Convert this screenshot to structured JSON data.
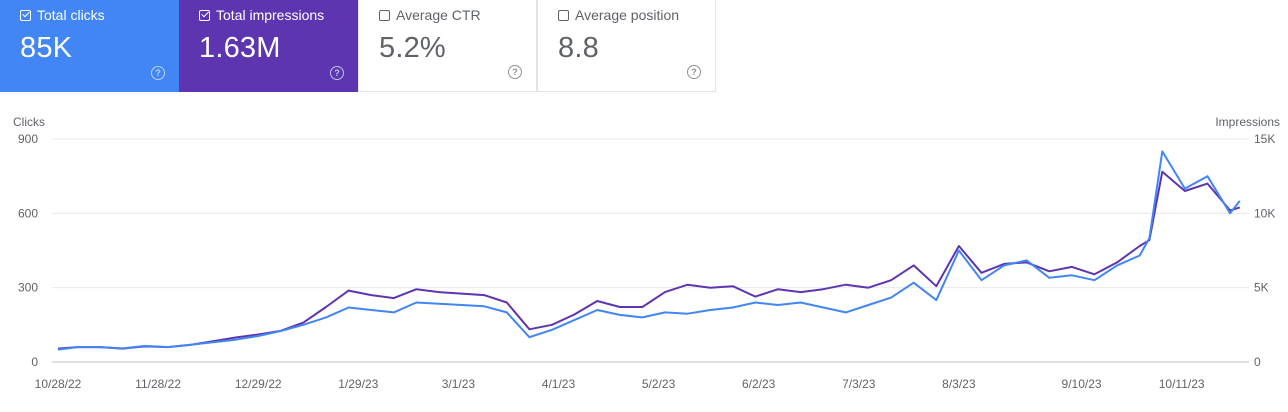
{
  "metrics": {
    "clicks": {
      "label": "Total clicks",
      "value": "85K",
      "checked": true
    },
    "impressions": {
      "label": "Total impressions",
      "value": "1.63M",
      "checked": true
    },
    "ctr": {
      "label": "Average CTR",
      "value": "5.2%",
      "checked": false
    },
    "position": {
      "label": "Average position",
      "value": "8.8",
      "checked": false
    },
    "help_glyph": "?"
  },
  "colors": {
    "clicks": "#4285f4",
    "impressions": "#5e35b1",
    "grid": "#e8eaed"
  },
  "chart_data": {
    "type": "line",
    "left_axis_title": "Clicks",
    "right_axis_title": "Impressions",
    "left_ticks": [
      "0",
      "300",
      "600",
      "900"
    ],
    "right_ticks": [
      "0",
      "5K",
      "10K",
      "15K"
    ],
    "ylim_left": [
      0,
      900
    ],
    "ylim_right": [
      0,
      15000
    ],
    "xlim": [
      "2022-10-28",
      "2023-10-30"
    ],
    "grid": true,
    "x_ticks": [
      "10/28/22",
      "11/28/22",
      "12/29/22",
      "1/29/23",
      "3/1/23",
      "4/1/23",
      "5/2/23",
      "6/2/23",
      "7/3/23",
      "8/3/23",
      "9/10/23",
      "10/11/23"
    ],
    "series": [
      {
        "name": "Clicks",
        "axis": "left",
        "x": [
          "10/28/22",
          "11/3/22",
          "11/10/22",
          "11/17/22",
          "11/24/22",
          "12/1/22",
          "12/8/22",
          "12/15/22",
          "12/22/22",
          "12/29/22",
          "1/5/23",
          "1/12/23",
          "1/19/23",
          "1/26/23",
          "2/2/23",
          "2/9/23",
          "2/16/23",
          "2/23/23",
          "3/2/23",
          "3/9/23",
          "3/16/23",
          "3/23/23",
          "3/30/23",
          "4/6/23",
          "4/13/23",
          "4/20/23",
          "4/27/23",
          "5/4/23",
          "5/11/23",
          "5/18/23",
          "5/25/23",
          "6/1/23",
          "6/8/23",
          "6/15/23",
          "6/22/23",
          "6/29/23",
          "7/6/23",
          "7/13/23",
          "7/20/23",
          "7/27/23",
          "8/3/23",
          "8/10/23",
          "8/17/23",
          "8/24/23",
          "8/31/23",
          "9/7/23",
          "9/14/23",
          "9/21/23",
          "9/28/23",
          "10/1/23",
          "10/5/23",
          "10/12/23",
          "10/19/23",
          "10/26/23",
          "10/29/23"
        ],
        "y": [
          50,
          60,
          60,
          55,
          65,
          60,
          70,
          80,
          90,
          105,
          125,
          150,
          180,
          220,
          210,
          200,
          240,
          235,
          230,
          225,
          200,
          100,
          130,
          170,
          210,
          190,
          180,
          200,
          195,
          210,
          220,
          240,
          230,
          240,
          220,
          200,
          230,
          260,
          320,
          250,
          450,
          330,
          390,
          410,
          340,
          350,
          330,
          390,
          430,
          500,
          850,
          700,
          750,
          600,
          650
        ]
      },
      {
        "name": "Impressions",
        "axis": "right",
        "x": [
          "10/28/22",
          "11/3/22",
          "11/10/22",
          "11/17/22",
          "11/24/22",
          "12/1/22",
          "12/8/22",
          "12/15/22",
          "12/22/22",
          "12/29/22",
          "1/5/23",
          "1/12/23",
          "1/19/23",
          "1/26/23",
          "2/2/23",
          "2/9/23",
          "2/16/23",
          "2/23/23",
          "3/2/23",
          "3/9/23",
          "3/16/23",
          "3/23/23",
          "3/30/23",
          "4/6/23",
          "4/13/23",
          "4/20/23",
          "4/27/23",
          "5/4/23",
          "5/11/23",
          "5/18/23",
          "5/25/23",
          "6/1/23",
          "6/8/23",
          "6/15/23",
          "6/22/23",
          "6/29/23",
          "7/6/23",
          "7/13/23",
          "7/20/23",
          "7/27/23",
          "8/3/23",
          "8/10/23",
          "8/17/23",
          "8/24/23",
          "8/31/23",
          "9/7/23",
          "9/14/23",
          "9/21/23",
          "9/28/23",
          "10/1/23",
          "10/5/23",
          "10/12/23",
          "10/19/23",
          "10/26/23",
          "10/29/23"
        ],
        "y": [
          900,
          1000,
          1000,
          900,
          1050,
          1000,
          1150,
          1400,
          1650,
          1850,
          2100,
          2650,
          3700,
          4800,
          4500,
          4300,
          4900,
          4700,
          4600,
          4500,
          4000,
          2200,
          2500,
          3200,
          4100,
          3700,
          3700,
          4700,
          5200,
          5000,
          5100,
          4400,
          4900,
          4700,
          4900,
          5200,
          5000,
          5500,
          6500,
          5100,
          7800,
          6000,
          6600,
          6700,
          6100,
          6400,
          5900,
          6700,
          7800,
          8200,
          12800,
          11500,
          12000,
          10200,
          10400
        ]
      }
    ]
  }
}
